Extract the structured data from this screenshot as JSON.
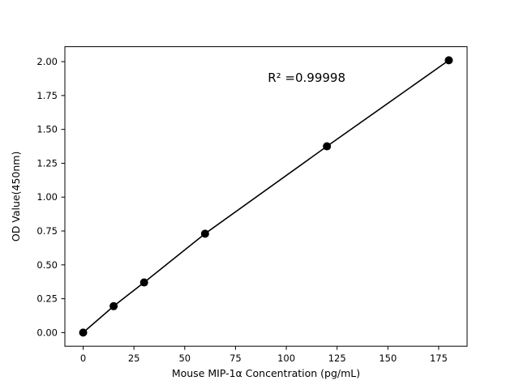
{
  "figure": {
    "background_color": "#ffffff"
  },
  "chart_data": {
    "type": "scatter",
    "title": "",
    "xlabel": "Mouse MIP-1α  Concentration (pg/mL)",
    "ylabel": "OD Value(450nm)",
    "annotation": {
      "text": "R² =0.99998",
      "x": 110,
      "y": 1.85
    },
    "x": [
      0,
      15,
      30,
      60,
      120,
      180
    ],
    "y": [
      0.0,
      0.195,
      0.37,
      0.73,
      1.375,
      2.01
    ],
    "xlim": [
      -9,
      189
    ],
    "ylim": [
      -0.1005,
      2.1105
    ],
    "xticks": [
      0,
      25,
      50,
      75,
      100,
      125,
      150,
      175
    ],
    "yticks": [
      0.0,
      0.25,
      0.5,
      0.75,
      1.0,
      1.25,
      1.5,
      1.75,
      2.0
    ],
    "grid": false,
    "legend": null,
    "line_color": "#000000",
    "marker_color": "#000000",
    "marker_radius": 5,
    "line_width": 1.6,
    "spine_color": "#000000"
  }
}
